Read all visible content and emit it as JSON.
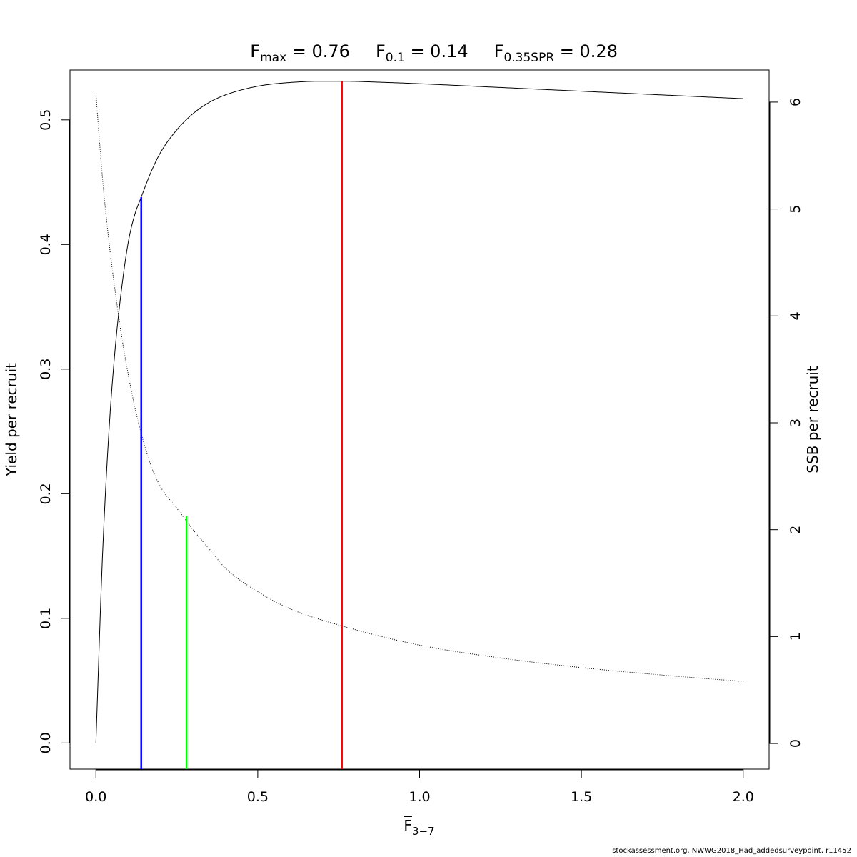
{
  "title": {
    "terms": [
      {
        "sym": "F",
        "sub": "max",
        "rest": " = 0.76"
      },
      {
        "sym": "F",
        "sub": "0.1",
        "rest": " = 0.14"
      },
      {
        "sym": "F",
        "sub": "0.35SPR",
        "rest": " = 0.28"
      }
    ]
  },
  "x_axis_label": {
    "sym": "F",
    "sub": "3−7"
  },
  "footer": "stockassessment.org, NWWG2018_Had_addedsurveypoint, r11452",
  "chart_data": {
    "type": "line",
    "xlim": [
      -0.08,
      2.08
    ],
    "x_ticks": [
      "0.0",
      "0.5",
      "1.0",
      "1.5",
      "2.0"
    ],
    "left_axis": {
      "label": "Yield per recruit",
      "ylim": [
        -0.021,
        0.54
      ],
      "ticks": [
        "0.0",
        "0.1",
        "0.2",
        "0.3",
        "0.4",
        "0.5"
      ]
    },
    "right_axis": {
      "label": "SSB per recruit",
      "ylim": [
        -0.24,
        6.3
      ],
      "ticks": [
        "0",
        "1",
        "2",
        "3",
        "4",
        "5",
        "6"
      ]
    },
    "series": [
      {
        "axis": "left",
        "style": "solid",
        "color": "#000000",
        "x": [
          0,
          0.02,
          0.04,
          0.06,
          0.08,
          0.1,
          0.12,
          0.14,
          0.17,
          0.2,
          0.25,
          0.3,
          0.35,
          0.4,
          0.5,
          0.6,
          0.7,
          0.76,
          0.9,
          1.0,
          1.25,
          1.5,
          1.75,
          2.0
        ],
        "y": [
          0,
          0.148,
          0.249,
          0.318,
          0.366,
          0.402,
          0.424,
          0.438,
          0.458,
          0.474,
          0.492,
          0.505,
          0.514,
          0.52,
          0.527,
          0.53,
          0.531,
          0.531,
          0.53,
          0.529,
          0.526,
          0.523,
          0.52,
          0.517
        ]
      },
      {
        "axis": "right",
        "style": "dotted",
        "color": "#000000",
        "x": [
          0,
          0.02,
          0.04,
          0.06,
          0.08,
          0.1,
          0.12,
          0.14,
          0.17,
          0.2,
          0.25,
          0.28,
          0.3,
          0.35,
          0.4,
          0.5,
          0.6,
          0.76,
          1.0,
          1.25,
          1.5,
          1.75,
          2.0
        ],
        "y": [
          6.08,
          5.3,
          4.7,
          4.22,
          3.8,
          3.45,
          3.15,
          2.9,
          2.6,
          2.4,
          2.2,
          2.08,
          2.0,
          1.82,
          1.64,
          1.42,
          1.26,
          1.1,
          0.92,
          0.8,
          0.71,
          0.64,
          0.58
        ]
      }
    ],
    "reference_lines": [
      {
        "name": "Fmax",
        "x": 0.76,
        "y_top": 0.531,
        "color": "#ff0000"
      },
      {
        "name": "F0.1",
        "x": 0.14,
        "y_top": 0.438,
        "color": "#0000ff"
      },
      {
        "name": "F0.35SPR",
        "x": 0.28,
        "y_top": 0.182,
        "color": "#00ff00"
      }
    ]
  }
}
